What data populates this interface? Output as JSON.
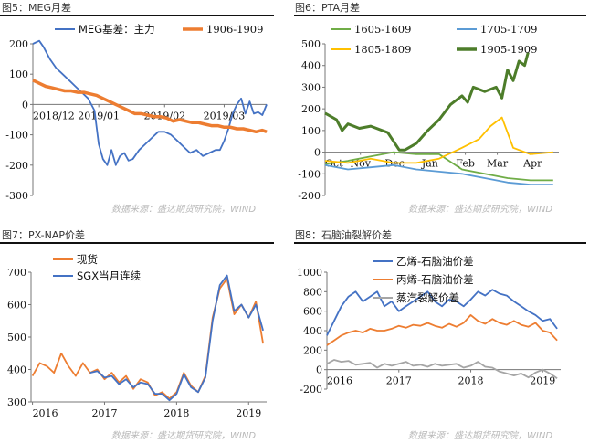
{
  "panels": [
    {
      "title": "图5：MEG月差",
      "source": "数据来源：盛达期货研究院，WIND",
      "chart_data": {
        "type": "line",
        "ylim": [
          -300,
          200
        ],
        "yticks": [
          200,
          100,
          0,
          -100,
          -200,
          -300
        ],
        "xticks": [
          {
            "label": "2018/12",
            "x": 0
          },
          {
            "label": "2019/01",
            "x": 31
          },
          {
            "label": "2019/02",
            "x": 62
          },
          {
            "label": "2019/03",
            "x": 90
          }
        ],
        "legend": "top",
        "series": [
          {
            "name": "MEG基差：主力",
            "color": "#4472c4",
            "x": [
              0,
              3,
              5,
              8,
              11,
              14,
              17,
              20,
              23,
              26,
              29,
              31,
              33,
              35,
              37,
              39,
              41,
              43,
              45,
              47,
              50,
              53,
              56,
              59,
              62,
              65,
              68,
              71,
              74,
              77,
              80,
              83,
              86,
              88,
              90,
              92,
              94,
              96,
              98,
              100,
              102,
              104,
              106,
              108,
              110
            ],
            "y": [
              200,
              210,
              190,
              150,
              120,
              100,
              80,
              60,
              40,
              20,
              -20,
              -130,
              -180,
              -200,
              -150,
              -200,
              -170,
              -160,
              -185,
              -180,
              -150,
              -130,
              -110,
              -90,
              -90,
              -100,
              -120,
              -140,
              -160,
              -150,
              -170,
              -160,
              -150,
              -150,
              -120,
              -80,
              -30,
              0,
              20,
              -30,
              10,
              -30,
              -25,
              -35,
              0
            ]
          },
          {
            "name": "1906-1909",
            "color": "#ed7d31",
            "x": [
              0,
              3,
              6,
              9,
              12,
              15,
              18,
              21,
              24,
              27,
              30,
              33,
              36,
              39,
              42,
              45,
              48,
              51,
              54,
              57,
              60,
              63,
              66,
              69,
              72,
              75,
              78,
              81,
              84,
              87,
              90,
              93,
              96,
              99,
              102,
              105,
              108,
              110
            ],
            "y": [
              80,
              70,
              60,
              55,
              50,
              45,
              45,
              40,
              40,
              35,
              30,
              20,
              10,
              0,
              -10,
              -20,
              -30,
              -30,
              -35,
              -40,
              -40,
              -45,
              -55,
              -50,
              -55,
              -60,
              -60,
              -65,
              -70,
              -70,
              -75,
              -75,
              -80,
              -80,
              -85,
              -90,
              -85,
              -90
            ]
          }
        ]
      }
    },
    {
      "title": "图6：PTA月差",
      "source": "数据来源：盛达期货研究院，WIND",
      "chart_data": {
        "type": "line",
        "ylim": [
          -200,
          500
        ],
        "yticks": [
          500,
          400,
          300,
          200,
          100,
          0,
          -100,
          -200
        ],
        "xticks": [
          {
            "label": "Oct",
            "x": 0
          },
          {
            "label": "Nov",
            "x": 31
          },
          {
            "label": "Dec",
            "x": 61
          },
          {
            "label": "Jan",
            "x": 92
          },
          {
            "label": "Feb",
            "x": 123
          },
          {
            "label": "Mar",
            "x": 151
          },
          {
            "label": "Apr",
            "x": 182
          }
        ],
        "legend": "top",
        "series": [
          {
            "name": "1605-1609",
            "color": "#70ad47",
            "x": [
              0,
              20,
              40,
              60,
              80,
              100,
              120,
              140,
              160,
              180,
              200
            ],
            "y": [
              -55,
              -40,
              -20,
              0,
              -10,
              -10,
              -80,
              -100,
              -120,
              -130,
              -130
            ]
          },
          {
            "name": "1705-1709",
            "color": "#5b9bd5",
            "x": [
              0,
              20,
              40,
              60,
              80,
              100,
              120,
              140,
              160,
              180,
              200
            ],
            "y": [
              -60,
              -80,
              -70,
              -60,
              -80,
              -90,
              -100,
              -120,
              -140,
              -150,
              -150
            ]
          },
          {
            "name": "1805-1809",
            "color": "#ffc000",
            "x": [
              0,
              20,
              40,
              60,
              80,
              100,
              120,
              135,
              145,
              155,
              165,
              180,
              200
            ],
            "y": [
              -40,
              -50,
              -30,
              -50,
              -50,
              -30,
              20,
              60,
              120,
              160,
              20,
              -10,
              0
            ]
          },
          {
            "name": "1905-1909",
            "color": "#4d7d2a",
            "x": [
              0,
              10,
              15,
              20,
              30,
              40,
              55,
              65,
              70,
              80,
              90,
              100,
              110,
              120,
              125,
              130,
              140,
              150,
              155,
              160,
              165,
              170,
              175,
              178
            ],
            "y": [
              180,
              150,
              100,
              130,
              110,
              120,
              90,
              10,
              10,
              40,
              100,
              150,
              220,
              260,
              230,
              300,
              280,
              300,
              250,
              380,
              330,
              420,
              400,
              460
            ]
          }
        ]
      }
    },
    {
      "title": "图7：PX-NAP价差",
      "source": "数据来源：盛达期货研究院，WIND",
      "chart_data": {
        "type": "line",
        "ylim": [
          300,
          700
        ],
        "yticks": [
          700,
          600,
          500,
          400,
          300
        ],
        "xticks": [
          {
            "label": "2016",
            "x": 0
          },
          {
            "label": "2017",
            "x": 1
          },
          {
            "label": "2018",
            "x": 2
          },
          {
            "label": "2019",
            "x": 3
          }
        ],
        "legend": "top-left",
        "series": [
          {
            "name": "现货",
            "color": "#ed7d31",
            "x": [
              0,
              0.1,
              0.2,
              0.3,
              0.4,
              0.5,
              0.6,
              0.7,
              0.8,
              0.9,
              1.0,
              1.1,
              1.2,
              1.3,
              1.4,
              1.5,
              1.6,
              1.7,
              1.8,
              1.9,
              2.0,
              2.1,
              2.2,
              2.3,
              2.4,
              2.5,
              2.6,
              2.7,
              2.8,
              2.9,
              3.0,
              3.1,
              3.2
            ],
            "y": [
              380,
              420,
              410,
              390,
              450,
              410,
              380,
              420,
              390,
              400,
              370,
              390,
              360,
              380,
              340,
              370,
              360,
              320,
              330,
              310,
              330,
              390,
              350,
              330,
              380,
              560,
              650,
              680,
              570,
              600,
              560,
              610,
              480
            ]
          },
          {
            "name": "SGX当月连续",
            "color": "#4472c4",
            "x": [
              0.8,
              0.9,
              1.0,
              1.1,
              1.2,
              1.3,
              1.4,
              1.5,
              1.6,
              1.7,
              1.8,
              1.9,
              2.0,
              2.1,
              2.2,
              2.3,
              2.4,
              2.5,
              2.6,
              2.7,
              2.8,
              2.9,
              3.0,
              3.1,
              3.2
            ],
            "y": [
              390,
              395,
              375,
              380,
              355,
              370,
              345,
              360,
              355,
              325,
              325,
              305,
              325,
              385,
              345,
              330,
              375,
              550,
              660,
              690,
              580,
              600,
              560,
              600,
              520
            ]
          }
        ]
      }
    },
    {
      "title": "图8：石脑油裂解价差",
      "source": "数据来源：盛达期货研究院，WIND",
      "chart_data": {
        "type": "line",
        "ylim": [
          -200,
          1000
        ],
        "yticks": [
          1000,
          800,
          600,
          400,
          200,
          0,
          -200
        ],
        "xticks": [
          {
            "label": "2016",
            "x": 0
          },
          {
            "label": "2017",
            "x": 1
          },
          {
            "label": "2018",
            "x": 2
          },
          {
            "label": "2019",
            "x": 3
          }
        ],
        "legend": "top",
        "series": [
          {
            "name": "乙烯-石脑油价差",
            "color": "#4472c4",
            "x": [
              0,
              0.1,
              0.2,
              0.3,
              0.4,
              0.5,
              0.6,
              0.7,
              0.8,
              0.9,
              1.0,
              1.1,
              1.2,
              1.3,
              1.4,
              1.5,
              1.6,
              1.7,
              1.8,
              1.9,
              2.0,
              2.1,
              2.2,
              2.3,
              2.4,
              2.5,
              2.6,
              2.7,
              2.8,
              2.9,
              3.0,
              3.1,
              3.2
            ],
            "y": [
              350,
              500,
              650,
              750,
              800,
              700,
              750,
              800,
              650,
              700,
              600,
              650,
              700,
              750,
              800,
              700,
              650,
              720,
              700,
              650,
              720,
              800,
              760,
              820,
              780,
              760,
              700,
              650,
              600,
              560,
              500,
              520,
              420
            ]
          },
          {
            "name": "丙烯-石脑油价差",
            "color": "#ed7d31",
            "x": [
              0,
              0.1,
              0.2,
              0.3,
              0.4,
              0.5,
              0.6,
              0.7,
              0.8,
              0.9,
              1.0,
              1.1,
              1.2,
              1.3,
              1.4,
              1.5,
              1.6,
              1.7,
              1.8,
              1.9,
              2.0,
              2.1,
              2.2,
              2.3,
              2.4,
              2.5,
              2.6,
              2.7,
              2.8,
              2.9,
              3.0,
              3.1,
              3.2
            ],
            "y": [
              250,
              300,
              350,
              380,
              400,
              380,
              420,
              400,
              400,
              420,
              450,
              430,
              460,
              450,
              480,
              450,
              430,
              470,
              440,
              480,
              560,
              500,
              470,
              520,
              480,
              460,
              500,
              460,
              440,
              480,
              400,
              380,
              300
            ]
          },
          {
            "name": "蒸汽裂解价差",
            "color": "#a5a5a5",
            "x": [
              0,
              0.1,
              0.2,
              0.3,
              0.4,
              0.5,
              0.6,
              0.7,
              0.8,
              0.9,
              1.0,
              1.1,
              1.2,
              1.3,
              1.4,
              1.5,
              1.6,
              1.7,
              1.8,
              1.9,
              2.0,
              2.1,
              2.2,
              2.3,
              2.4,
              2.5,
              2.6,
              2.7,
              2.8,
              2.9,
              3.0,
              3.1,
              3.2
            ],
            "y": [
              60,
              100,
              80,
              90,
              50,
              60,
              70,
              20,
              60,
              40,
              60,
              80,
              40,
              50,
              30,
              60,
              40,
              50,
              60,
              20,
              40,
              80,
              30,
              20,
              -20,
              -40,
              -60,
              -40,
              -80,
              -30,
              0,
              -40,
              -90
            ]
          }
        ]
      }
    }
  ]
}
